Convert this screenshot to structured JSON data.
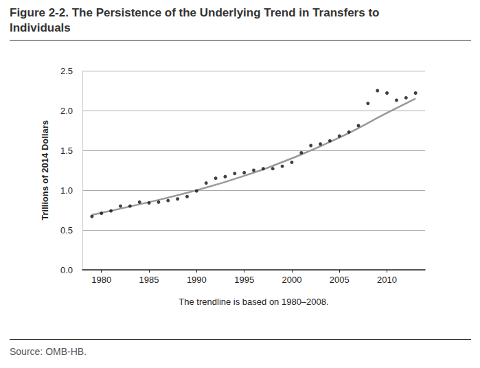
{
  "chart_data": {
    "type": "scatter",
    "title": "Figure 2-2. The Persistence of the Underlying Trend in Transfers to Individuals",
    "ylabel": "Trillions of 2014 Dollars",
    "xlabel": "The trendline is based on 1980–2008.",
    "source": "Source: OMB-HB.",
    "xlim": [
      1978,
      2014
    ],
    "xticks": [
      1980,
      1985,
      1990,
      1995,
      2000,
      2005,
      2010
    ],
    "ylim": [
      0,
      2.5
    ],
    "yticks": [
      {
        "value": 0,
        "label": "0.0"
      },
      {
        "value": 0.5,
        "label": "0.5"
      },
      {
        "value": 1,
        "label": "1.0"
      },
      {
        "value": 1.5,
        "label": "1.5"
      },
      {
        "value": 2,
        "label": "2.0"
      },
      {
        "value": 2.5,
        "label": "2.5"
      }
    ],
    "grid": true,
    "series": [
      {
        "type": "scatter",
        "color": "#111111",
        "marker": "circle",
        "x": [
          1979,
          1980,
          1981,
          1982,
          1983,
          1984,
          1985,
          1986,
          1987,
          1988,
          1989,
          1990,
          1991,
          1992,
          1993,
          1994,
          1995,
          1996,
          1997,
          1998,
          1999,
          2000,
          2001,
          2002,
          2003,
          2004,
          2005,
          2006,
          2007,
          2008,
          2009,
          2010,
          2011,
          2012,
          2013
        ],
        "values": [
          0.67,
          0.71,
          0.74,
          0.8,
          0.8,
          0.85,
          0.84,
          0.85,
          0.87,
          0.89,
          0.92,
          0.99,
          1.09,
          1.15,
          1.17,
          1.21,
          1.22,
          1.25,
          1.27,
          1.27,
          1.3,
          1.35,
          1.47,
          1.56,
          1.58,
          1.62,
          1.68,
          1.73,
          1.81,
          2.09,
          2.25,
          2.22,
          2.13,
          2.16,
          2.22
        ]
      },
      {
        "type": "line",
        "color": "#999999",
        "line_style": "solid",
        "x": [
          1979,
          1985,
          1990,
          1995,
          2000,
          2005,
          2010,
          2013
        ],
        "values": [
          0.69,
          0.85,
          1.0,
          1.18,
          1.4,
          1.66,
          1.97,
          2.15
        ]
      }
    ]
  }
}
